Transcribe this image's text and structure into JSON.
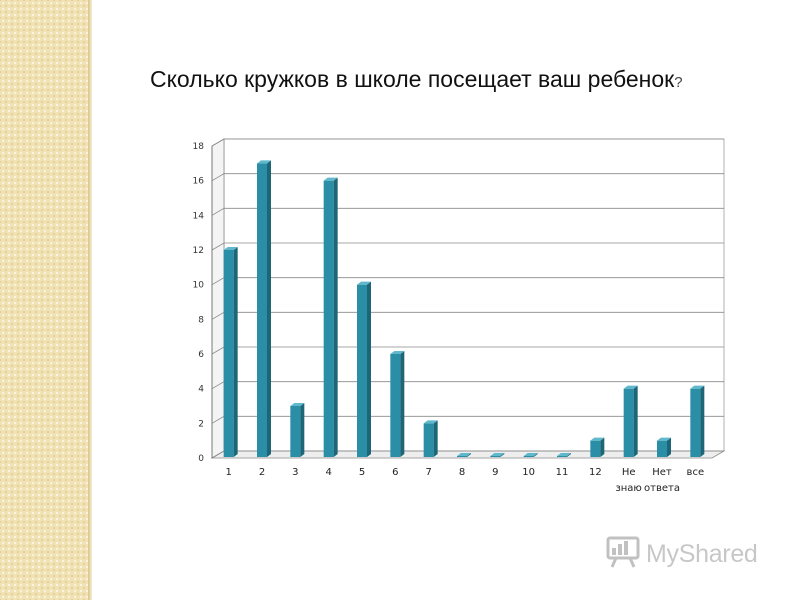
{
  "slide": {
    "title": "Сколько кружков в школе посещает ваш ребенок",
    "title_mark": "?"
  },
  "chart_data": {
    "type": "bar",
    "title": "",
    "xlabel": "",
    "ylabel": "",
    "categories": [
      "1",
      "2",
      "3",
      "4",
      "5",
      "6",
      "7",
      "8",
      "9",
      "10",
      "11",
      "12",
      "Не знаю",
      "Нет ответа",
      "все"
    ],
    "category_lines": [
      [
        "1"
      ],
      [
        "2"
      ],
      [
        "3"
      ],
      [
        "4"
      ],
      [
        "5"
      ],
      [
        "6"
      ],
      [
        "7"
      ],
      [
        "8"
      ],
      [
        "9"
      ],
      [
        "10"
      ],
      [
        "11"
      ],
      [
        "12"
      ],
      [
        "Не",
        "знаю"
      ],
      [
        "Нет",
        "ответа"
      ],
      [
        "все"
      ]
    ],
    "values": [
      12,
      17,
      3,
      16,
      10,
      6,
      2,
      0,
      0,
      0,
      0,
      1,
      4,
      1,
      4
    ],
    "ylim": [
      0,
      18
    ],
    "yticks": [
      0,
      2,
      4,
      6,
      8,
      10,
      12,
      14,
      16,
      18
    ],
    "grid": true,
    "legend": "none",
    "colors": {
      "bar_front": "#2a8fa6",
      "bar_side": "#1d6678",
      "bar_top": "#5fb8cc",
      "grid": "#8a8a8a"
    }
  },
  "watermark": {
    "text": "MyShared",
    "icon": "presentation-board-icon"
  }
}
